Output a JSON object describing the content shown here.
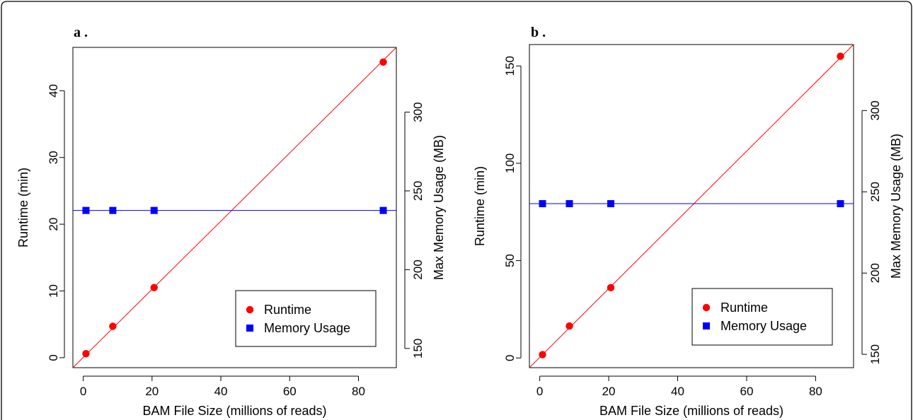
{
  "chart_data": [
    {
      "type": "scatter",
      "panel_label": "a .",
      "xlabel": "BAM File Size (millions of reads)",
      "ylabel": "Runtime (min)",
      "y2label": "Max Memory Usage (MB)",
      "xlim": [
        -3,
        91
      ],
      "ylim": [
        -1.5,
        46.5
      ],
      "y2lim": [
        137.8,
        341.1
      ],
      "xticks": [
        0,
        20,
        40,
        60,
        80
      ],
      "yticks": [
        0,
        10,
        20,
        30,
        40
      ],
      "y2ticks": [
        150,
        200,
        250,
        300
      ],
      "legend_position": "bottom-right",
      "series": [
        {
          "name": "Runtime",
          "axis": "left",
          "marker": "circle",
          "color": "#ff0000",
          "x": [
            0.8,
            8.6,
            20.6,
            87.2
          ],
          "y": [
            0.6,
            4.7,
            10.5,
            44.3
          ],
          "fit": [
            [
              -3,
              -1.5
            ],
            [
              91,
              46.5
            ]
          ]
        },
        {
          "name": "Memory Usage",
          "axis": "right",
          "marker": "square",
          "color": "#0000ff",
          "x": [
            0.8,
            8.6,
            20.6,
            87.2
          ],
          "y": [
            237.6,
            237.6,
            237.6,
            237.6
          ],
          "fit": [
            [
              -3,
              237.6
            ],
            [
              91,
              237.6
            ]
          ]
        }
      ]
    },
    {
      "type": "scatter",
      "panel_label": "b .",
      "xlabel": "BAM File Size (millions of reads)",
      "ylabel": "Runtime (min)",
      "y2label": "Max Memory Usage (MB)",
      "xlim": [
        -3,
        91
      ],
      "ylim": [
        -5,
        161
      ],
      "y2lim": [
        141.8,
        340.6
      ],
      "xticks": [
        0,
        20,
        40,
        60,
        80
      ],
      "yticks": [
        0,
        50,
        100,
        150
      ],
      "y2ticks": [
        150,
        200,
        250,
        300
      ],
      "legend_position": "bottom-right",
      "series": [
        {
          "name": "Runtime",
          "axis": "left",
          "marker": "circle",
          "color": "#ff0000",
          "x": [
            0.8,
            8.6,
            20.6,
            87.2
          ],
          "y": [
            1.7,
            16.4,
            36.1,
            155.0
          ],
          "fit": [
            [
              -3,
              -5
            ],
            [
              91,
              161
            ]
          ]
        },
        {
          "name": "Memory Usage",
          "axis": "right",
          "marker": "square",
          "color": "#0000ff",
          "x": [
            0.8,
            8.6,
            20.6,
            87.2
          ],
          "y": [
            242.7,
            242.7,
            242.7,
            242.7
          ],
          "fit": [
            [
              -3,
              242.7
            ],
            [
              91,
              242.7
            ]
          ]
        }
      ]
    }
  ]
}
